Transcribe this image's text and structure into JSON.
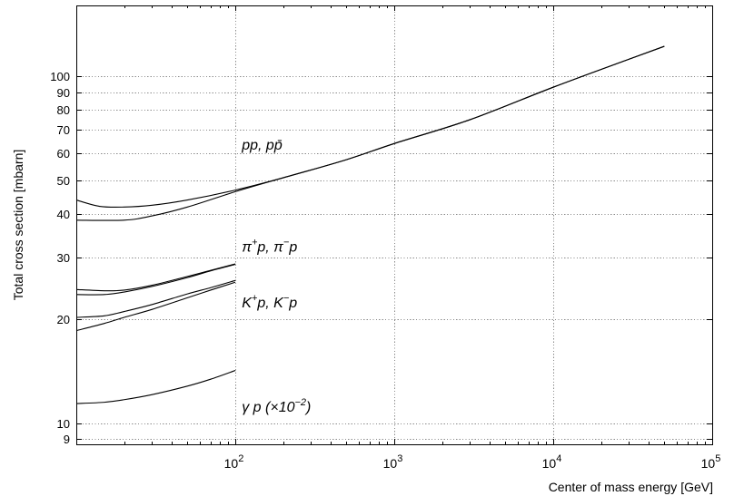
{
  "chart_data": {
    "type": "line",
    "xlabel": "Center of mass energy [GeV]",
    "ylabel": "Total cross section [mbarn]",
    "x_scale": "log",
    "y_scale": "log",
    "xlim": [
      10,
      100000
    ],
    "ylim": [
      8.7,
      160
    ],
    "grid": true,
    "x_ticks": [
      {
        "value": 100,
        "base": "10",
        "exp": "2"
      },
      {
        "value": 1000,
        "base": "10",
        "exp": "3"
      },
      {
        "value": 10000,
        "base": "10",
        "exp": "4"
      },
      {
        "value": 100000,
        "base": "10",
        "exp": "5"
      }
    ],
    "y_ticks": [
      {
        "value": 9,
        "label": "9"
      },
      {
        "value": 10,
        "label": "10"
      },
      {
        "value": 20,
        "label": "20"
      },
      {
        "value": 30,
        "label": "30"
      },
      {
        "value": 40,
        "label": "40"
      },
      {
        "value": 50,
        "label": "50"
      },
      {
        "value": 60,
        "label": "60"
      },
      {
        "value": 70,
        "label": "70"
      },
      {
        "value": 80,
        "label": "80"
      },
      {
        "value": 90,
        "label": "90"
      },
      {
        "value": 100,
        "label": "100"
      }
    ],
    "series": [
      {
        "points": [
          [
            10,
            44
          ],
          [
            14,
            42.2
          ],
          [
            20,
            42
          ],
          [
            30,
            42.5
          ],
          [
            50,
            44
          ],
          [
            100,
            47
          ],
          [
            200,
            51
          ],
          [
            500,
            57.5
          ],
          [
            1000,
            64
          ],
          [
            3000,
            75
          ],
          [
            10000,
            93
          ],
          [
            30000,
            112
          ],
          [
            50000,
            122
          ]
        ]
      },
      {
        "points": [
          [
            10,
            38.5
          ],
          [
            20,
            38.5
          ],
          [
            30,
            39.6
          ],
          [
            50,
            42
          ],
          [
            100,
            46.5
          ],
          [
            200,
            51
          ],
          [
            500,
            57.5
          ],
          [
            1000,
            64
          ],
          [
            3000,
            75
          ],
          [
            10000,
            93
          ],
          [
            30000,
            112
          ],
          [
            50000,
            122
          ]
        ]
      },
      {
        "points": [
          [
            10,
            24.3
          ],
          [
            15,
            24.1
          ],
          [
            20,
            24.2
          ],
          [
            30,
            25
          ],
          [
            50,
            26.5
          ],
          [
            70,
            27.6
          ],
          [
            100,
            28.8
          ]
        ]
      },
      {
        "points": [
          [
            10,
            23.5
          ],
          [
            15,
            23.5
          ],
          [
            20,
            23.9
          ],
          [
            30,
            24.8
          ],
          [
            50,
            26.3
          ],
          [
            70,
            27.5
          ],
          [
            100,
            28.7
          ]
        ]
      },
      {
        "points": [
          [
            10,
            20.2
          ],
          [
            15,
            20.4
          ],
          [
            20,
            21
          ],
          [
            30,
            22
          ],
          [
            50,
            23.6
          ],
          [
            70,
            24.6
          ],
          [
            100,
            25.8
          ]
        ]
      },
      {
        "points": [
          [
            10,
            18.5
          ],
          [
            15,
            19.4
          ],
          [
            20,
            20.2
          ],
          [
            30,
            21.3
          ],
          [
            50,
            23
          ],
          [
            70,
            24.2
          ],
          [
            100,
            25.5
          ]
        ]
      },
      {
        "points": [
          [
            10,
            11.4
          ],
          [
            15,
            11.5
          ],
          [
            20,
            11.7
          ],
          [
            30,
            12.1
          ],
          [
            50,
            12.8
          ],
          [
            70,
            13.4
          ],
          [
            100,
            14.2
          ]
        ]
      }
    ],
    "annotations": [
      {
        "id": "pp",
        "text": "pp, pp̄",
        "x": 110,
        "y": 61.5
      },
      {
        "id": "pi",
        "parts": [
          "π",
          "+",
          "p, π",
          "−",
          "p"
        ],
        "x": 110,
        "y": 31.2
      },
      {
        "id": "k",
        "parts": [
          "K",
          "+",
          "p, K",
          "−",
          "p"
        ],
        "x": 110,
        "y": 21.6
      },
      {
        "id": "gamma",
        "parts": [
          "γ p (×10",
          "−2",
          ")"
        ],
        "x": 110,
        "y": 10.8
      }
    ]
  }
}
